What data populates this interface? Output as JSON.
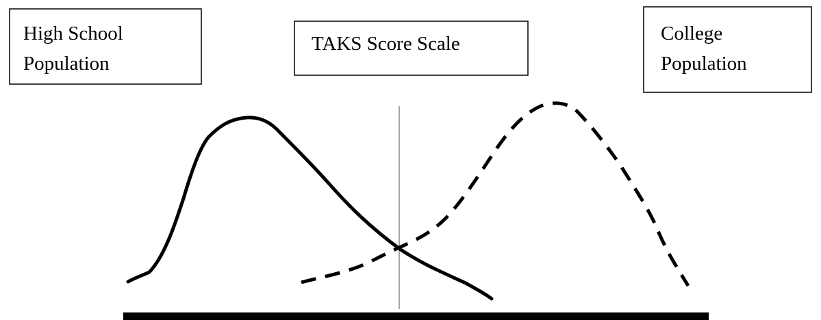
{
  "labels": [
    {
      "lines": [
        "High School",
        "Population"
      ]
    },
    {
      "lines": [
        "TAKS Score Scale"
      ]
    },
    {
      "lines": [
        "College",
        "Population"
      ]
    }
  ]
}
